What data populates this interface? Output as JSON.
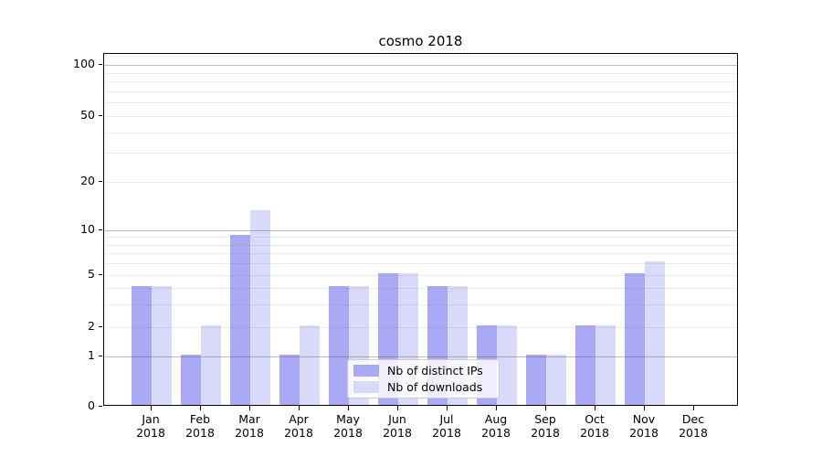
{
  "title": "cosmo 2018",
  "legend": {
    "items": [
      {
        "label": "Nb of distinct IPs",
        "color": "#a9a9f6"
      },
      {
        "label": "Nb of downloads",
        "color": "#d9d9fa"
      }
    ]
  },
  "y_axis": {
    "tick_labels": [
      "100",
      "50",
      "20",
      "10",
      "5",
      "2",
      "1",
      "0"
    ]
  },
  "x_axis": {
    "tick_labels": [
      "Jan\n2018",
      "Feb\n2018",
      "Mar\n2018",
      "Apr\n2018",
      "May\n2018",
      "Jun\n2018",
      "Jul\n2018",
      "Aug\n2018",
      "Sep\n2018",
      "Oct\n2018",
      "Nov\n2018",
      "Dec\n2018"
    ]
  },
  "chart_data": {
    "type": "bar",
    "title": "cosmo 2018",
    "categories": [
      "Jan 2018",
      "Feb 2018",
      "Mar 2018",
      "Apr 2018",
      "May 2018",
      "Jun 2018",
      "Jul 2018",
      "Aug 2018",
      "Sep 2018",
      "Oct 2018",
      "Nov 2018",
      "Dec 2018"
    ],
    "series": [
      {
        "name": "Nb of distinct IPs",
        "color": "#a9a9f6",
        "values": [
          4,
          1,
          9,
          1,
          4,
          5,
          4,
          2,
          1,
          2,
          5,
          0
        ]
      },
      {
        "name": "Nb of downloads",
        "color": "#d9d9fa",
        "values": [
          4,
          2,
          13,
          2,
          4,
          5,
          4,
          2,
          1,
          2,
          6,
          0
        ]
      }
    ],
    "xlabel": "",
    "ylabel": "",
    "yscale": "log-like",
    "yticks": [
      0,
      1,
      2,
      5,
      10,
      20,
      50,
      100
    ],
    "ylim": [
      0,
      115
    ],
    "grid": "on",
    "legend_position": "inside lower-center"
  }
}
